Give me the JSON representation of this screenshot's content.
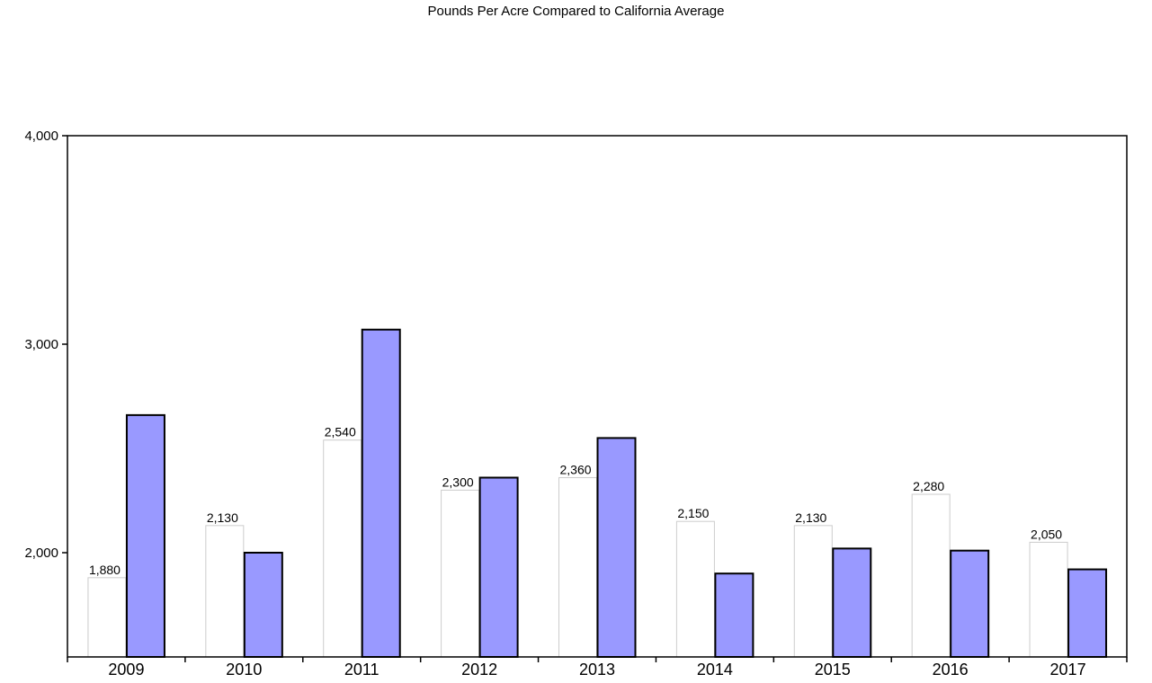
{
  "chart_data": {
    "type": "bar",
    "title": "Pounds Per Acre Compared to California Average",
    "xlabel": "",
    "ylabel": "",
    "categories": [
      "2009",
      "2010",
      "2011",
      "2012",
      "2013",
      "2014",
      "2015",
      "2016",
      "2017"
    ],
    "series": [
      {
        "values": [
          1880,
          2130,
          2540,
          2300,
          2360,
          2150,
          2130,
          2280,
          2050
        ],
        "labels": [
          "1,880",
          "2,130",
          "2,540",
          "2,300",
          "2,360",
          "2,150",
          "2,130",
          "2,280",
          "2,050"
        ],
        "color": "#ffffff"
      },
      {
        "values": [
          2660,
          2000,
          3070,
          2360,
          2550,
          1900,
          2020,
          2010,
          1920
        ],
        "color": "#9999ff"
      }
    ],
    "ylim": [
      1500,
      4000
    ],
    "yticks": [
      2000,
      3000,
      4000
    ],
    "ytick_labels": [
      "2,000",
      "3,000",
      "4,000"
    ],
    "grid": false,
    "legend": "none"
  }
}
